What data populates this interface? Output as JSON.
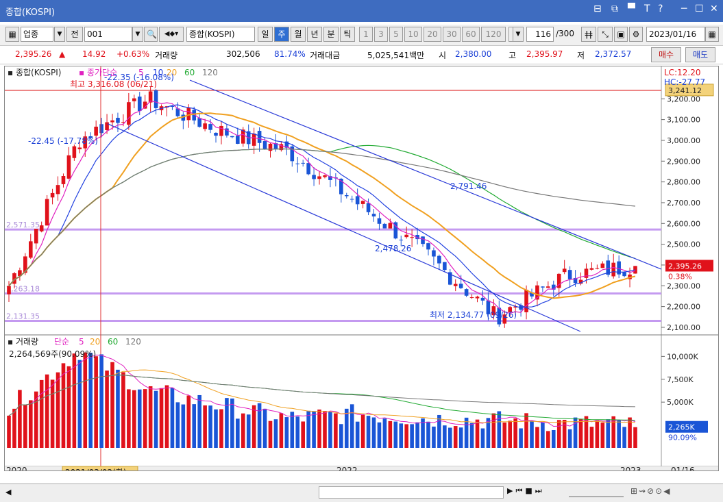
{
  "window": {
    "title": "종합(KOSPI)",
    "controls": [
      "⊟",
      "⧉",
      "▀",
      "T",
      "?",
      "─",
      "☐",
      "✕"
    ]
  },
  "toolbar": {
    "market": "업종",
    "prev_label": "전",
    "code": "001",
    "name": "종합(KOSPI)",
    "periods": [
      {
        "label": "일",
        "selected": false
      },
      {
        "label": "주",
        "selected": true
      },
      {
        "label": "월",
        "selected": false
      },
      {
        "label": "년",
        "selected": false
      },
      {
        "label": "분",
        "selected": false
      },
      {
        "label": "틱",
        "selected": false
      }
    ],
    "intervals": [
      "1",
      "3",
      "5",
      "10",
      "20",
      "30",
      "60",
      "120"
    ],
    "count": "116",
    "total": "/300",
    "date": "2023/01/16"
  },
  "quote": {
    "price": "2,395.26",
    "arrow": "▲",
    "change": "14.92",
    "change_pct": "+0.63%",
    "volume_label": "거래량",
    "volume": "302,506",
    "volume_pct": "81.74%",
    "amount_label": "거래대금",
    "amount": "5,025,541백만",
    "open_label": "시",
    "open": "2,380.00",
    "high_label": "고",
    "high": "2,395.97",
    "low_label": "저",
    "low": "2,372.57",
    "buy_label": "매수",
    "sell_label": "매도"
  },
  "chart": {
    "main_legend": "종합(KOSPI)",
    "ma_legend": "종가단순",
    "ma_periods": [
      "5",
      "10",
      "20",
      "60",
      "120"
    ],
    "ma_colors": [
      "#e020c0",
      "#2040e0",
      "#f0a020",
      "#22aa33",
      "#777777"
    ],
    "lc": "LC:12.20",
    "hc": "HC:-27.77",
    "high_line_price": "3,241.12",
    "y_ticks": [
      "3,200.00",
      "3,100.00",
      "3,000.00",
      "2,900.00",
      "2,800.00",
      "2,700.00",
      "2,600.00",
      "2,500.00",
      "2,400.00",
      "2,300.00",
      "2,200.00",
      "2,100.00"
    ],
    "current_price": "2,395.26",
    "current_pct": "0.38%",
    "annotations": {
      "max": "최고 3,316.08 (06/21)",
      "trend_pct": "-22.35 (-16.08%)",
      "left_pct": "-22.45 (-17.78%)",
      "line1": "2,791.46",
      "line2": "2,478.26",
      "min": "최저 2,134.77 (09/26)",
      "lvl1": "2,571.35",
      "lvl2": "2,263.18",
      "lvl3": "2,131.35"
    },
    "vol_legend": "거래량",
    "vol_ma": "단순",
    "vol_periods": [
      "5",
      "20",
      "60",
      "120"
    ],
    "vol_info": "2,264,569주(90.09%)",
    "vol_ticks": [
      "10,000K",
      "7,500K",
      "5,000K"
    ],
    "vol_current": "2,265K",
    "vol_pct": "90.09%",
    "x_labels": [
      "2020",
      "2022",
      "2023",
      "01/16"
    ],
    "cursor_date": "2021/03/02(화)"
  },
  "chart_data": {
    "type": "candlestick",
    "title": "종합(KOSPI)",
    "ylim": [
      2080,
      3290
    ],
    "x": [
      "2020-12",
      "2021-03",
      "2021-06",
      "2021-09",
      "2021-12",
      "2022-03",
      "2022-06",
      "2022-09",
      "2022-12",
      "2023-01"
    ],
    "close": [
      2300,
      3000,
      3200,
      3050,
      2950,
      2700,
      2450,
      2150,
      2350,
      2395.26
    ],
    "volume_k": [
      4000,
      10500,
      6000,
      4500,
      3000,
      3500,
      3000,
      2800,
      2500,
      2265
    ]
  }
}
